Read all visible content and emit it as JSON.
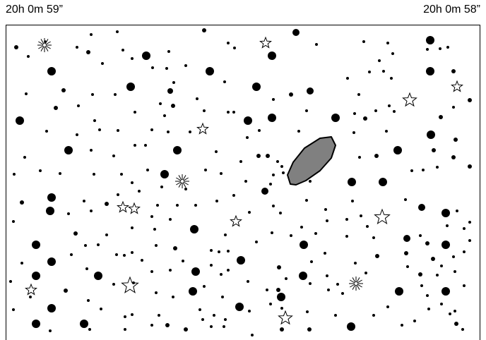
{
  "ra_labels": {
    "left": "20h 0m 59”",
    "right": "20h 0m 58”"
  },
  "map": {
    "background": "#ffffff",
    "star_color": "#000000",
    "galaxy_fill": "#808080",
    "symbols": {
      "open_star": "star-outline-icon",
      "starburst": "starburst-icon",
      "galaxy": "ellipse-galaxy-icon"
    }
  }
}
